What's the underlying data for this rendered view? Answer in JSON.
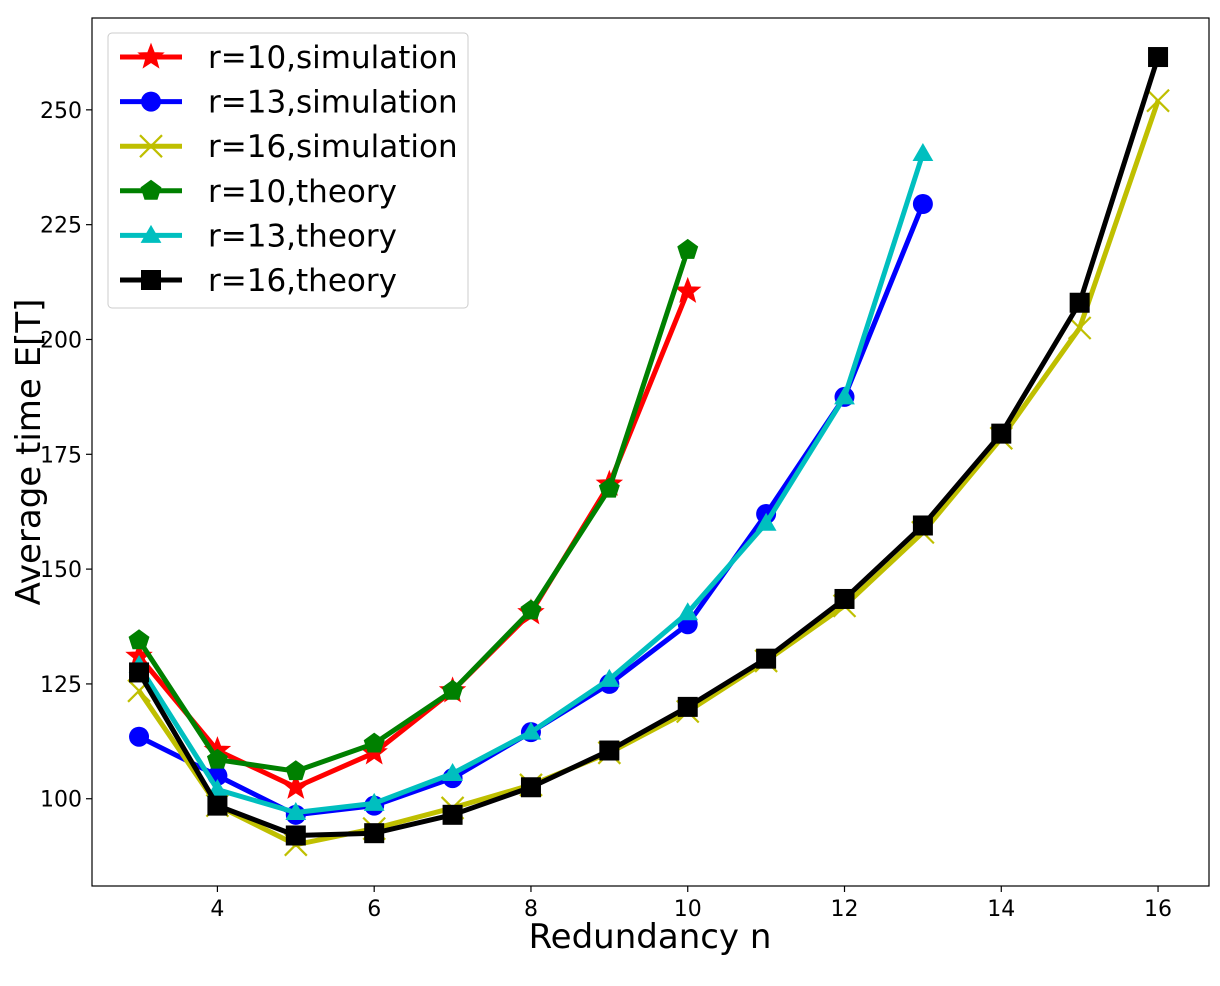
{
  "chart_data": {
    "type": "line",
    "title": "",
    "xlabel": "Redundancy n",
    "ylabel": "Average time E[T]",
    "xlim": [
      2.4,
      16.65
    ],
    "ylim": [
      81,
      270
    ],
    "xticks": [
      4,
      6,
      8,
      10,
      12,
      14,
      16
    ],
    "yticks": [
      100,
      125,
      150,
      175,
      200,
      225,
      250
    ],
    "grid": false,
    "legend_position": "top-left",
    "series": [
      {
        "name": "r=10,simulation",
        "color": "#ff0000",
        "marker": "star",
        "x": [
          3,
          4,
          5,
          6,
          7,
          8,
          9,
          10
        ],
        "y": [
          131,
          110.5,
          102.5,
          110,
          123.5,
          140.5,
          168.5,
          210.5
        ]
      },
      {
        "name": "r=13,simulation",
        "color": "#0000ff",
        "marker": "circle",
        "x": [
          3,
          4,
          5,
          6,
          7,
          8,
          9,
          10,
          11,
          12,
          13
        ],
        "y": [
          113.5,
          105,
          96.5,
          98.5,
          104.5,
          114.5,
          125,
          138,
          162,
          187.5,
          229.5
        ]
      },
      {
        "name": "r=16,simulation",
        "color": "#bfbf00",
        "marker": "x",
        "x": [
          3,
          4,
          5,
          6,
          7,
          8,
          9,
          10,
          11,
          12,
          13,
          14,
          15,
          16
        ],
        "y": [
          123.5,
          98.5,
          90,
          93.5,
          98,
          103,
          110,
          119,
          130,
          142,
          158,
          178.5,
          202.5,
          252
        ]
      },
      {
        "name": "r=10,theory",
        "color": "#008000",
        "marker": "pentagon",
        "x": [
          3,
          4,
          5,
          6,
          7,
          8,
          9,
          10
        ],
        "y": [
          134.5,
          108.5,
          106,
          112,
          123.5,
          141,
          167.5,
          219.5
        ]
      },
      {
        "name": "r=13,theory",
        "color": "#00bfbf",
        "marker": "triangle",
        "x": [
          3,
          4,
          5,
          6,
          7,
          8,
          9,
          10,
          11,
          12,
          13
        ],
        "y": [
          129,
          102,
          97,
          99,
          105.5,
          114.5,
          126,
          140.5,
          160,
          187.5,
          240.5
        ]
      },
      {
        "name": "r=16,theory",
        "color": "#000000",
        "marker": "square",
        "x": [
          3,
          4,
          5,
          6,
          7,
          8,
          9,
          10,
          11,
          12,
          13,
          14,
          15,
          16
        ],
        "y": [
          127.5,
          98.5,
          92,
          92.5,
          96.5,
          102.5,
          110.5,
          120,
          130.5,
          143.5,
          159.5,
          179.5,
          208,
          261.5
        ]
      }
    ]
  }
}
